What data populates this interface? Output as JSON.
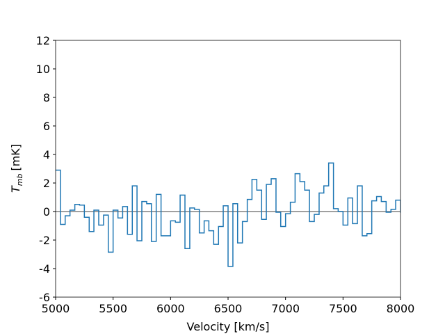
{
  "chart_data": {
    "type": "step",
    "x_label": "Velocity [km/s]",
    "y_label_main": "T",
    "y_label_sub": "mb",
    "y_label_unit": "[mK]",
    "x": [
      5000,
      5042,
      5083,
      5125,
      5167,
      5208,
      5250,
      5292,
      5333,
      5375,
      5417,
      5458,
      5500,
      5542,
      5583,
      5625,
      5667,
      5708,
      5750,
      5792,
      5833,
      5875,
      5917,
      6000,
      6042,
      6083,
      6125,
      6167,
      6208,
      6250,
      6292,
      6333,
      6375,
      6417,
      6458,
      6500,
      6542,
      6583,
      6625,
      6667,
      6708,
      6750,
      6792,
      6833,
      6875,
      6917,
      6958,
      7000,
      7042,
      7083,
      7125,
      7167,
      7208,
      7250,
      7292,
      7333,
      7375,
      7417,
      7458,
      7500,
      7542,
      7583,
      7625,
      7667,
      7708,
      7750,
      7792,
      7833,
      7875,
      7917,
      7958,
      8000
    ],
    "values": [
      2.9,
      -0.9,
      -0.3,
      0.1,
      0.5,
      0.45,
      -0.4,
      -1.4,
      0.1,
      -0.95,
      -0.25,
      -2.85,
      0.1,
      -0.45,
      0.35,
      -1.6,
      1.8,
      -2.05,
      0.7,
      0.55,
      -2.1,
      1.2,
      -1.7,
      -0.65,
      -0.75,
      1.15,
      -2.6,
      0.25,
      0.15,
      -1.5,
      -0.65,
      -1.35,
      -2.3,
      -1.05,
      0.4,
      -3.85,
      0.55,
      -2.2,
      -0.7,
      0.85,
      2.25,
      1.5,
      -0.55,
      1.9,
      2.3,
      -0.05,
      -1.05,
      -0.15,
      0.65,
      2.65,
      2.1,
      1.5,
      -0.7,
      -0.2,
      1.3,
      1.8,
      3.4,
      0.2,
      0.0,
      -0.95,
      0.95,
      -0.85,
      1.8,
      -1.7,
      -1.55,
      0.75,
      1.05,
      0.7,
      -0.05,
      0.15,
      0.8,
      -0.05
    ],
    "color": "#1f77b4",
    "hline": 0,
    "hline_color": "#808080",
    "xlim": [
      5000,
      8000
    ],
    "xticks": [
      5000,
      5500,
      6000,
      6500,
      7000,
      7500,
      8000
    ],
    "ylim": [
      -6,
      12
    ],
    "yticks": [
      -6,
      -4,
      -2,
      0,
      2,
      4,
      6,
      8,
      10,
      12
    ]
  }
}
